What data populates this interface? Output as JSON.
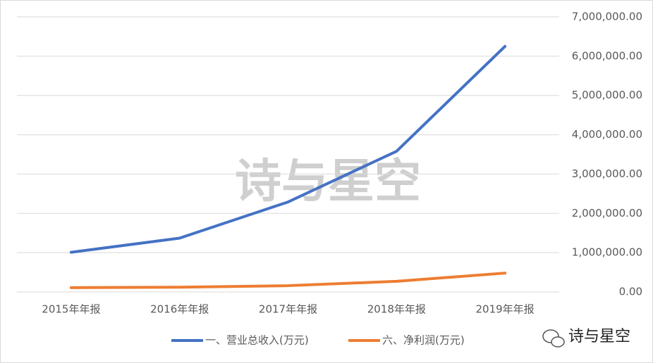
{
  "chart_data": {
    "type": "line",
    "categories": [
      "2015年年报",
      "2016年年报",
      "2017年年报",
      "2018年年报",
      "2019年年报"
    ],
    "series": [
      {
        "name": "一、营业总收入(万元)",
        "color": "#4472c4",
        "values": [
          1010000,
          1370000,
          2290000,
          3580000,
          6250000
        ]
      },
      {
        "name": "六、净利润(万元)",
        "color": "#ed7d31",
        "values": [
          110000,
          120000,
          160000,
          270000,
          480000
        ]
      }
    ],
    "ylim": [
      0,
      7000000
    ],
    "yticks": [
      {
        "value": 0,
        "label": "0.00"
      },
      {
        "value": 1000000,
        "label": "1,000,000.00"
      },
      {
        "value": 2000000,
        "label": "2,000,000.00"
      },
      {
        "value": 3000000,
        "label": "3,000,000.00"
      },
      {
        "value": 4000000,
        "label": "4,000,000.00"
      },
      {
        "value": 5000000,
        "label": "5,000,000.00"
      },
      {
        "value": 6000000,
        "label": "6,000,000.00"
      },
      {
        "value": 7000000,
        "label": "7,000,000.00"
      }
    ],
    "grid": true,
    "y_axis_side": "right",
    "legend": "bottom",
    "watermark": "诗与星空",
    "brand": "诗与星空"
  }
}
